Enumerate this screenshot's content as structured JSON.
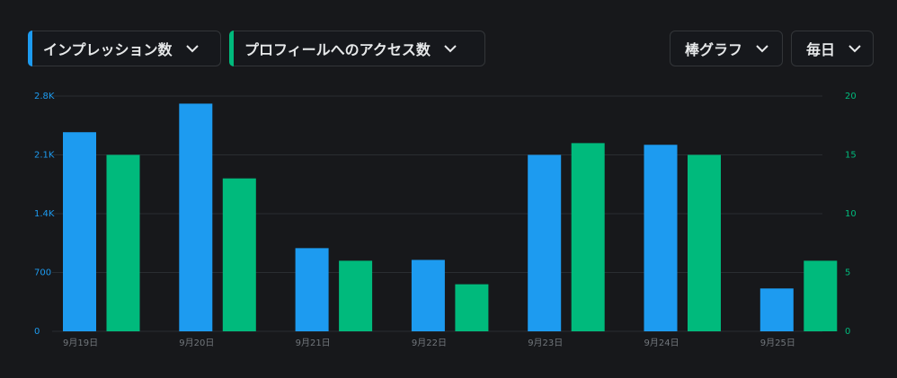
{
  "toolbar": {
    "metric1": {
      "label": "インプレッション数",
      "color": "#1d9bf0"
    },
    "metric2": {
      "label": "プロフィールへのアクセス数",
      "color": "#00ba7c"
    },
    "chart_type": {
      "label": "棒グラフ"
    },
    "interval": {
      "label": "毎日"
    }
  },
  "chart_data": {
    "type": "bar",
    "categories": [
      "9月19日",
      "9月20日",
      "9月21日",
      "9月22日",
      "9月23日",
      "9月24日",
      "9月25日"
    ],
    "series": [
      {
        "name": "インプレッション数",
        "axis": "left",
        "color": "#1d9bf0",
        "values": [
          2370,
          2710,
          990,
          850,
          2100,
          2220,
          510
        ]
      },
      {
        "name": "プロフィールへのアクセス数",
        "axis": "right",
        "color": "#00ba7c",
        "values": [
          15,
          13,
          6,
          4,
          16,
          15,
          6
        ]
      }
    ],
    "left_axis": {
      "ticks": [
        "0",
        "700",
        "1.4K",
        "2.1K",
        "2.8K"
      ],
      "tick_values": [
        0,
        700,
        1400,
        2100,
        2800
      ],
      "ylim": [
        0,
        2800
      ],
      "color": "#1d9bf0"
    },
    "right_axis": {
      "ticks": [
        "0",
        "5",
        "10",
        "15",
        "20"
      ],
      "tick_values": [
        0,
        5,
        10,
        15,
        20
      ],
      "ylim": [
        0,
        20
      ],
      "color": "#00ba7c"
    },
    "grid": true
  }
}
